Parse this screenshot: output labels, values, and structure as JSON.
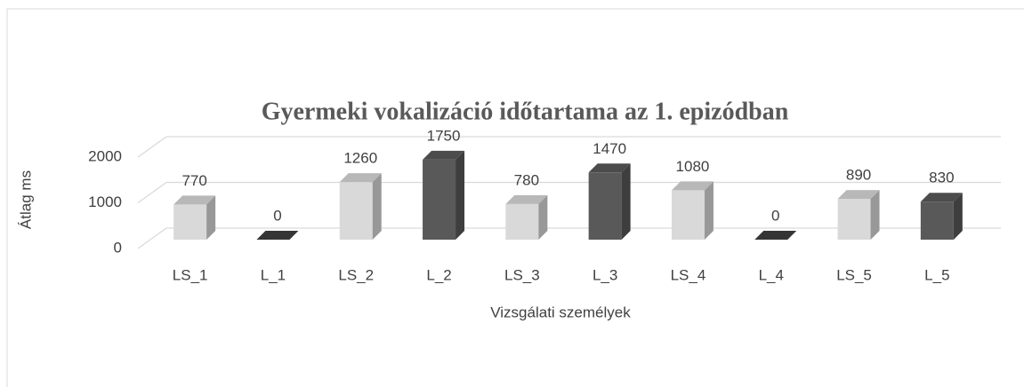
{
  "chart_data": {
    "type": "bar3d",
    "title": "Gyermeki vokalizáció időtartama az 1. epizódban",
    "ylabel": "Átlag ms",
    "xlabel": "Vizsgálati személyek",
    "categories": [
      "LS_1",
      "L_1",
      "LS_2",
      "L_2",
      "LS_3",
      "L_3",
      "LS_4",
      "L_4",
      "LS_5",
      "L_5"
    ],
    "values": [
      770,
      0,
      1260,
      1750,
      780,
      1470,
      1080,
      0,
      890,
      830
    ],
    "colors": [
      "#d9d9d9",
      "#595959",
      "#d9d9d9",
      "#595959",
      "#d9d9d9",
      "#595959",
      "#d9d9d9",
      "#595959",
      "#d9d9d9",
      "#595959"
    ],
    "ylim": [
      0,
      2000
    ],
    "yticks": [
      0,
      1000,
      2000
    ],
    "grid": true
  }
}
